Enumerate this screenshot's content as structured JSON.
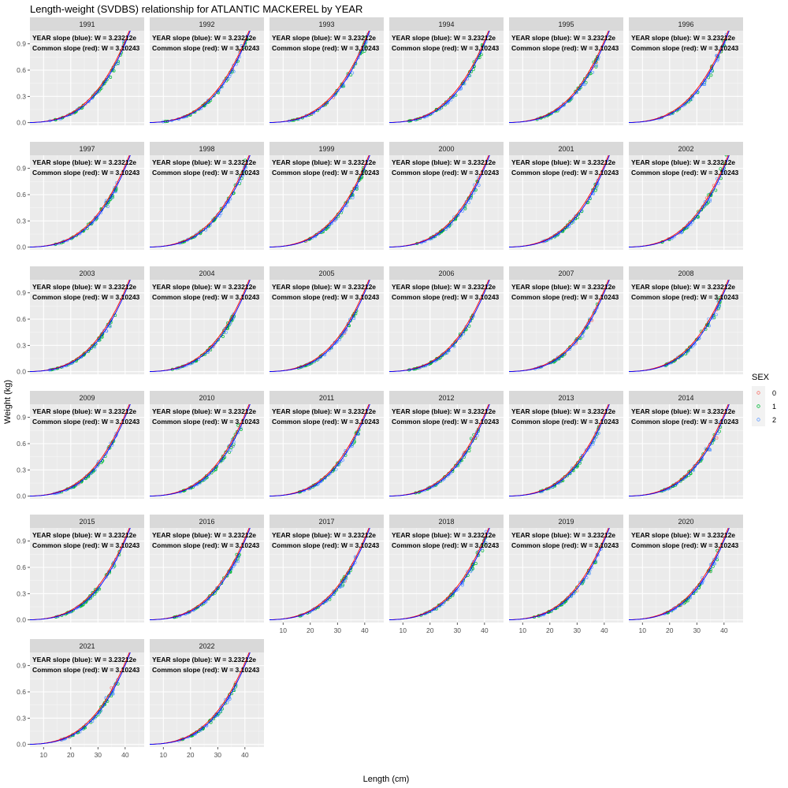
{
  "chart_data": {
    "type": "scatter",
    "title": "Length-weight (SVDBS) relationship for ATLANTIC MACKEREL by YEAR",
    "xlabel": "Length (cm)",
    "ylabel": "Weight (kg)",
    "facet_var": "YEAR",
    "facets": [
      "1991",
      "1992",
      "1993",
      "1994",
      "1995",
      "1996",
      "1997",
      "1998",
      "1999",
      "2000",
      "2001",
      "2002",
      "2003",
      "2004",
      "2005",
      "2006",
      "2007",
      "2008",
      "2009",
      "2010",
      "2011",
      "2012",
      "2013",
      "2014",
      "2015",
      "2016",
      "2017",
      "2018",
      "2019",
      "2020",
      "2021",
      "2022"
    ],
    "annotation_year": "YEAR slope (blue): W = 3.23212e",
    "annotation_common": "Common slope (red): W = 3.10243",
    "xlim": [
      5,
      47
    ],
    "ylim": [
      -0.03,
      1.05
    ],
    "x_ticks": [
      10,
      20,
      30,
      40
    ],
    "x_tick_labels": [
      "10",
      "20",
      "30",
      "40"
    ],
    "y_ticks": [
      0,
      0.3,
      0.6,
      0.9
    ],
    "y_tick_labels": [
      "0.0",
      "0.3",
      "0.6",
      "0.9"
    ],
    "grid": true,
    "legend": {
      "title": "SEX",
      "placement": "right",
      "entries": [
        {
          "label": "0",
          "color": "#F8766D"
        },
        {
          "label": "1",
          "color": "#00BA38"
        },
        {
          "label": "2",
          "color": "#619CFF"
        }
      ]
    },
    "fit_lines": [
      {
        "name": "YEAR slope",
        "color": "#0000FF",
        "a": 6e-06,
        "b": 3.23212
      },
      {
        "name": "Common slope",
        "color": "#FF0000",
        "a": 1e-05,
        "b": 3.10243
      }
    ],
    "length_ranges": [
      [
        12,
        40
      ],
      [
        9,
        41
      ],
      [
        12,
        42
      ],
      [
        12,
        40
      ],
      [
        15,
        38
      ],
      [
        16,
        44
      ],
      [
        14,
        37
      ],
      [
        15,
        41
      ],
      [
        16,
        40
      ],
      [
        15,
        38
      ],
      [
        16,
        38
      ],
      [
        17,
        41
      ],
      [
        12,
        37
      ],
      [
        13,
        36
      ],
      [
        15,
        37
      ],
      [
        12,
        36
      ],
      [
        14,
        38
      ],
      [
        18,
        39
      ],
      [
        13,
        37
      ],
      [
        15,
        39
      ],
      [
        15,
        39
      ],
      [
        14,
        38
      ],
      [
        15,
        38
      ],
      [
        17,
        39
      ],
      [
        14,
        38
      ],
      [
        13,
        38
      ],
      [
        16,
        38
      ],
      [
        14,
        41
      ],
      [
        14,
        39
      ],
      [
        18,
        38
      ],
      [
        16,
        38
      ],
      [
        15,
        37
      ]
    ]
  }
}
